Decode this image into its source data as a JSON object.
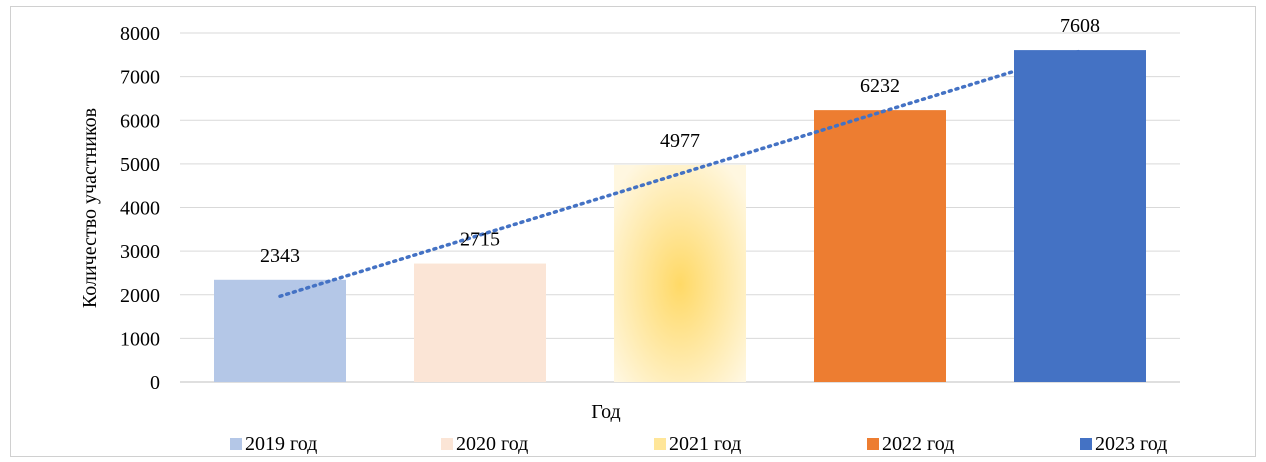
{
  "chart_data": {
    "type": "bar",
    "categories": [
      "2019 год",
      "2020 год",
      "2021 год",
      "2022 год",
      "2023 год"
    ],
    "values": [
      2343,
      2715,
      4977,
      6232,
      7608
    ],
    "data_labels": [
      "2343",
      "2715",
      "4977",
      "6232",
      "7608"
    ],
    "xlabel": "Год",
    "ylabel": "Количество участников",
    "ylim": [
      0,
      8000
    ],
    "yticks": [
      0,
      1000,
      2000,
      3000,
      4000,
      5000,
      6000,
      7000,
      8000
    ],
    "grid": true,
    "legend": "bottom",
    "trendline": {
      "type": "linear",
      "style": "dotted",
      "color": "#4472C4"
    },
    "colors": [
      "#B4C7E7",
      "#FBE5D6",
      "#FFE699",
      "#ED7D31",
      "#4472C4"
    ]
  }
}
